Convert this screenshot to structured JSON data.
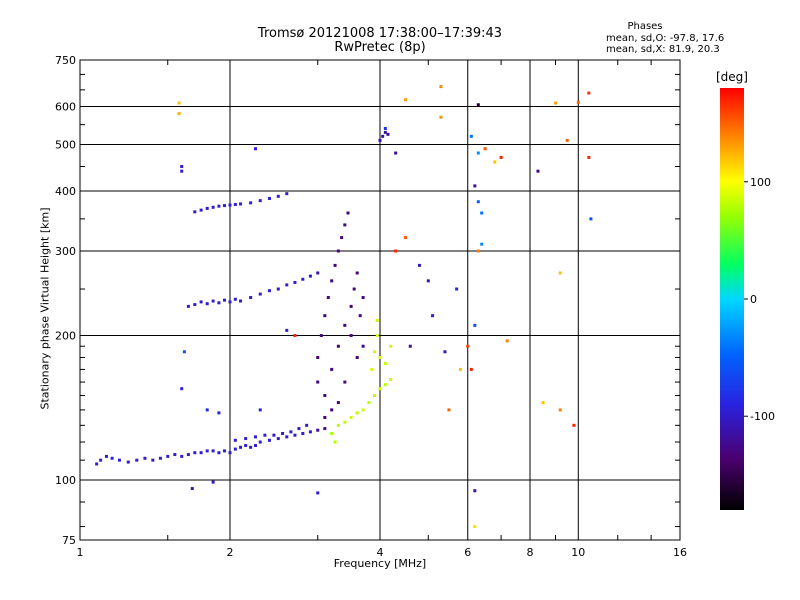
{
  "chart_data": {
    "type": "scatter",
    "title": "Tromsø 20121008 17:38:00–17:39:43",
    "subtitle": "RwPretec (8p)",
    "xlabel": "Frequency [MHz]",
    "ylabel": "Stationary phase Virtual Height [km]",
    "x_scale": "log2",
    "y_scale": "log",
    "xlim": [
      1,
      16
    ],
    "ylim": [
      75,
      750
    ],
    "x_ticks": [
      1,
      2,
      4,
      6,
      8,
      10,
      16
    ],
    "x_tick_labels": [
      "1",
      "2",
      "4",
      "6",
      "8",
      "10",
      "16"
    ],
    "y_ticks": [
      75,
      100,
      200,
      300,
      400,
      500,
      600,
      750
    ],
    "y_tick_labels": [
      "75",
      "100",
      "200",
      "300",
      "400",
      "500",
      "600",
      "750"
    ],
    "grid": true,
    "phase_stats": {
      "title": "Phases",
      "o_line": "mean, sd,O: -97.8, 17.6",
      "x_line": "mean, sd,X:  81.9, 20.3"
    },
    "colorbar": {
      "label": "[deg]",
      "range": [
        -180,
        180
      ],
      "ticks": [
        100,
        0,
        -100
      ],
      "tick_labels": [
        "100",
        "0",
        "-100"
      ]
    },
    "series": [
      {
        "name": "traces",
        "points": [
          [
            1.08,
            108,
            -95
          ],
          [
            1.1,
            110,
            -92
          ],
          [
            1.13,
            112,
            -98
          ],
          [
            1.16,
            111,
            -90
          ],
          [
            1.2,
            110,
            -96
          ],
          [
            1.25,
            109,
            -100
          ],
          [
            1.3,
            110,
            -94
          ],
          [
            1.35,
            111,
            -97
          ],
          [
            1.4,
            110,
            -99
          ],
          [
            1.45,
            111,
            -95
          ],
          [
            1.5,
            112,
            -96
          ],
          [
            1.55,
            113,
            -98
          ],
          [
            1.6,
            112,
            -93
          ],
          [
            1.65,
            113,
            -97
          ],
          [
            1.7,
            114,
            -95
          ],
          [
            1.75,
            114,
            -99
          ],
          [
            1.8,
            115,
            -96
          ],
          [
            1.85,
            115,
            -94
          ],
          [
            1.9,
            114,
            -98
          ],
          [
            1.95,
            115,
            -97
          ],
          [
            2.0,
            114,
            -95
          ],
          [
            2.05,
            116,
            -96
          ],
          [
            2.1,
            117,
            -99
          ],
          [
            2.15,
            118,
            -94
          ],
          [
            2.2,
            117,
            -97
          ],
          [
            2.25,
            118,
            -98
          ],
          [
            2.3,
            120,
            -95
          ],
          [
            2.4,
            121,
            -96
          ],
          [
            2.5,
            122,
            -97
          ],
          [
            2.6,
            123,
            -94
          ],
          [
            2.7,
            124,
            -98
          ],
          [
            2.8,
            125,
            -96
          ],
          [
            2.9,
            126,
            -97
          ],
          [
            3.0,
            127,
            -120
          ],
          [
            3.1,
            128,
            -125
          ],
          [
            2.05,
            121,
            -95
          ],
          [
            2.15,
            122,
            -96
          ],
          [
            2.25,
            123,
            -94
          ],
          [
            2.35,
            124,
            -97
          ],
          [
            2.45,
            124,
            -99
          ],
          [
            2.55,
            125,
            -96
          ],
          [
            2.65,
            126,
            -95
          ],
          [
            2.75,
            128,
            -98
          ],
          [
            2.85,
            130,
            -97
          ],
          [
            1.6,
            155,
            -90
          ],
          [
            1.8,
            140,
            -88
          ],
          [
            1.9,
            138,
            -92
          ],
          [
            1.65,
            230,
            -96
          ],
          [
            1.7,
            232,
            -98
          ],
          [
            1.75,
            235,
            -97
          ],
          [
            1.8,
            233,
            -95
          ],
          [
            1.85,
            236,
            -96
          ],
          [
            1.9,
            234,
            -99
          ],
          [
            1.95,
            237,
            -94
          ],
          [
            2.0,
            235,
            -97
          ],
          [
            2.05,
            238,
            -95
          ],
          [
            2.1,
            236,
            -98
          ],
          [
            2.2,
            240,
            -96
          ],
          [
            2.3,
            244,
            -97
          ],
          [
            2.4,
            248,
            -95
          ],
          [
            2.5,
            250,
            -98
          ],
          [
            2.6,
            255,
            -96
          ],
          [
            2.7,
            258,
            -97
          ],
          [
            2.8,
            262,
            -95
          ],
          [
            2.9,
            266,
            -99
          ],
          [
            3.0,
            270,
            -110
          ],
          [
            1.7,
            362,
            -98
          ],
          [
            1.75,
            365,
            -96
          ],
          [
            1.8,
            368,
            -97
          ],
          [
            1.85,
            370,
            -95
          ],
          [
            1.9,
            372,
            -98
          ],
          [
            1.95,
            373,
            -96
          ],
          [
            2.0,
            374,
            -97
          ],
          [
            2.05,
            375,
            -95
          ],
          [
            2.1,
            376,
            -98
          ],
          [
            2.2,
            378,
            -96
          ],
          [
            2.3,
            382,
            -97
          ],
          [
            2.4,
            386,
            -95
          ],
          [
            2.5,
            390,
            -98
          ],
          [
            2.6,
            395,
            -96
          ],
          [
            1.6,
            440,
            -94
          ],
          [
            1.6,
            450,
            -96
          ],
          [
            2.25,
            490,
            -98
          ],
          [
            3.0,
            160,
            -130
          ],
          [
            3.0,
            180,
            -135
          ],
          [
            3.05,
            200,
            -128
          ],
          [
            3.1,
            220,
            -132
          ],
          [
            3.15,
            240,
            -130
          ],
          [
            3.2,
            260,
            -134
          ],
          [
            3.25,
            280,
            -131
          ],
          [
            3.3,
            300,
            -129
          ],
          [
            3.35,
            320,
            -133
          ],
          [
            3.4,
            340,
            -130
          ],
          [
            3.45,
            360,
            -132
          ],
          [
            3.1,
            150,
            -127
          ],
          [
            3.2,
            170,
            -131
          ],
          [
            3.3,
            190,
            -134
          ],
          [
            3.4,
            210,
            -129
          ],
          [
            3.5,
            230,
            -133
          ],
          [
            3.55,
            250,
            -130
          ],
          [
            3.6,
            270,
            -132
          ],
          [
            3.5,
            200,
            -128
          ],
          [
            3.6,
            180,
            -131
          ],
          [
            3.7,
            190,
            -129
          ],
          [
            3.65,
            220,
            -133
          ],
          [
            3.7,
            240,
            -130
          ],
          [
            3.4,
            160,
            -128
          ],
          [
            3.3,
            145,
            -132
          ],
          [
            3.2,
            140,
            -135
          ],
          [
            3.1,
            135,
            -130
          ],
          [
            3.3,
            130,
            80
          ],
          [
            3.4,
            132,
            82
          ],
          [
            3.5,
            135,
            85
          ],
          [
            3.6,
            138,
            80
          ],
          [
            3.7,
            140,
            84
          ],
          [
            3.8,
            145,
            78
          ],
          [
            3.9,
            150,
            82
          ],
          [
            4.0,
            155,
            85
          ],
          [
            4.1,
            158,
            80
          ],
          [
            4.2,
            162,
            84
          ],
          [
            3.85,
            170,
            88
          ],
          [
            3.9,
            185,
            86
          ],
          [
            3.95,
            200,
            90
          ],
          [
            3.95,
            215,
            85
          ],
          [
            4.0,
            180,
            88
          ],
          [
            4.1,
            175,
            84
          ],
          [
            4.2,
            190,
            86
          ],
          [
            3.2,
            125,
            75
          ],
          [
            3.25,
            120,
            78
          ],
          [
            4.0,
            510,
            -110
          ],
          [
            4.05,
            520,
            -115
          ],
          [
            4.1,
            530,
            -112
          ],
          [
            4.15,
            525,
            -118
          ],
          [
            4.1,
            540,
            -80
          ],
          [
            4.3,
            480,
            -120
          ],
          [
            4.5,
            620,
            130
          ],
          [
            5.3,
            660,
            140
          ],
          [
            5.3,
            570,
            135
          ],
          [
            4.3,
            300,
            170
          ],
          [
            4.5,
            320,
            150
          ],
          [
            4.8,
            280,
            -100
          ],
          [
            5.0,
            260,
            -110
          ],
          [
            4.6,
            190,
            -120
          ],
          [
            5.1,
            220,
            -95
          ],
          [
            5.4,
            185,
            -105
          ],
          [
            5.7,
            250,
            -90
          ],
          [
            5.5,
            140,
            150
          ],
          [
            5.8,
            170,
            120
          ],
          [
            6.2,
            210,
            -60
          ],
          [
            6.0,
            190,
            160
          ],
          [
            6.1,
            520,
            -40
          ],
          [
            6.3,
            480,
            -30
          ],
          [
            6.2,
            410,
            -120
          ],
          [
            6.3,
            380,
            -50
          ],
          [
            6.4,
            360,
            -40
          ],
          [
            6.4,
            310,
            -30
          ],
          [
            6.1,
            170,
            170
          ],
          [
            6.3,
            605,
            -160
          ],
          [
            6.3,
            300,
            140
          ],
          [
            6.5,
            490,
            155
          ],
          [
            6.8,
            460,
            120
          ],
          [
            7.0,
            470,
            170
          ],
          [
            7.2,
            195,
            140
          ],
          [
            6.2,
            95,
            -120
          ],
          [
            6.2,
            80,
            110
          ],
          [
            8.3,
            440,
            -130
          ],
          [
            8.5,
            145,
            120
          ],
          [
            9.0,
            610,
            130
          ],
          [
            9.2,
            140,
            140
          ],
          [
            9.5,
            510,
            150
          ],
          [
            10.0,
            612,
            150
          ],
          [
            10.5,
            640,
            165
          ],
          [
            10.5,
            470,
            170
          ],
          [
            10.6,
            350,
            -60
          ],
          [
            9.2,
            270,
            120
          ],
          [
            9.8,
            130,
            170
          ],
          [
            1.58,
            610,
            120
          ],
          [
            1.58,
            580,
            125
          ],
          [
            2.6,
            205,
            -100
          ],
          [
            2.7,
            200,
            170
          ],
          [
            1.68,
            96,
            -110
          ],
          [
            1.85,
            99,
            -105
          ],
          [
            2.3,
            140,
            -90
          ],
          [
            3.0,
            94,
            -95
          ],
          [
            1.62,
            185,
            -60
          ]
        ]
      }
    ]
  }
}
